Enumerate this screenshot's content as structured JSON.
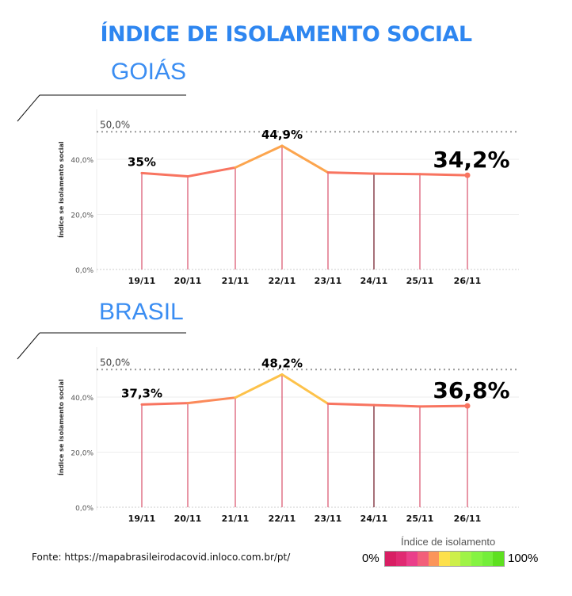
{
  "title": "ÍNDICE DE ISOLAMENTO SOCIAL",
  "source": "Fonte: https://mapabrasileirodacovid.inloco.com.br/pt/",
  "legend": {
    "title": "Índice de isolamento",
    "min_label": "0%",
    "max_label": "100%",
    "colors": [
      "#d81e63",
      "#e02a72",
      "#ea3f8a",
      "#f25f7a",
      "#fb955a",
      "#fde04c",
      "#cdef4a",
      "#9ff347",
      "#85f342",
      "#74ee3a",
      "#5ee020"
    ]
  },
  "chart_data": [
    {
      "type": "line",
      "region": "GOIÁS",
      "ylabel": "Índice se isolamento social",
      "ylim": [
        0,
        50
      ],
      "yticks": [
        "0,0%",
        "20,0%",
        "40,0%"
      ],
      "ref_line_label": "50,0%",
      "ref_line": 50,
      "categories": [
        "19/11",
        "20/11",
        "21/11",
        "22/11",
        "23/11",
        "24/11",
        "25/11",
        "26/11"
      ],
      "values": [
        35,
        33.8,
        37,
        44.9,
        35.2,
        34.8,
        34.6,
        34.2
      ],
      "annotations": [
        {
          "index": 0,
          "label": "35%"
        },
        {
          "index": 3,
          "label": "44,9%"
        },
        {
          "index": 7,
          "label": "34,2%",
          "large": true
        }
      ]
    },
    {
      "type": "line",
      "region": "BRASIL",
      "ylabel": "Índice se isolamento social",
      "ylim": [
        0,
        50
      ],
      "yticks": [
        "0,0%",
        "20,0%",
        "40,0%"
      ],
      "ref_line_label": "50,0%",
      "ref_line": 50,
      "categories": [
        "19/11",
        "20/11",
        "21/11",
        "22/11",
        "23/11",
        "24/11",
        "25/11",
        "26/11"
      ],
      "values": [
        37.3,
        37.8,
        39.8,
        48.2,
        37.6,
        37.1,
        36.6,
        36.8
      ],
      "annotations": [
        {
          "index": 0,
          "label": "37,3%"
        },
        {
          "index": 3,
          "label": "48,2%"
        },
        {
          "index": 7,
          "label": "36,8%",
          "large": true
        }
      ]
    }
  ]
}
